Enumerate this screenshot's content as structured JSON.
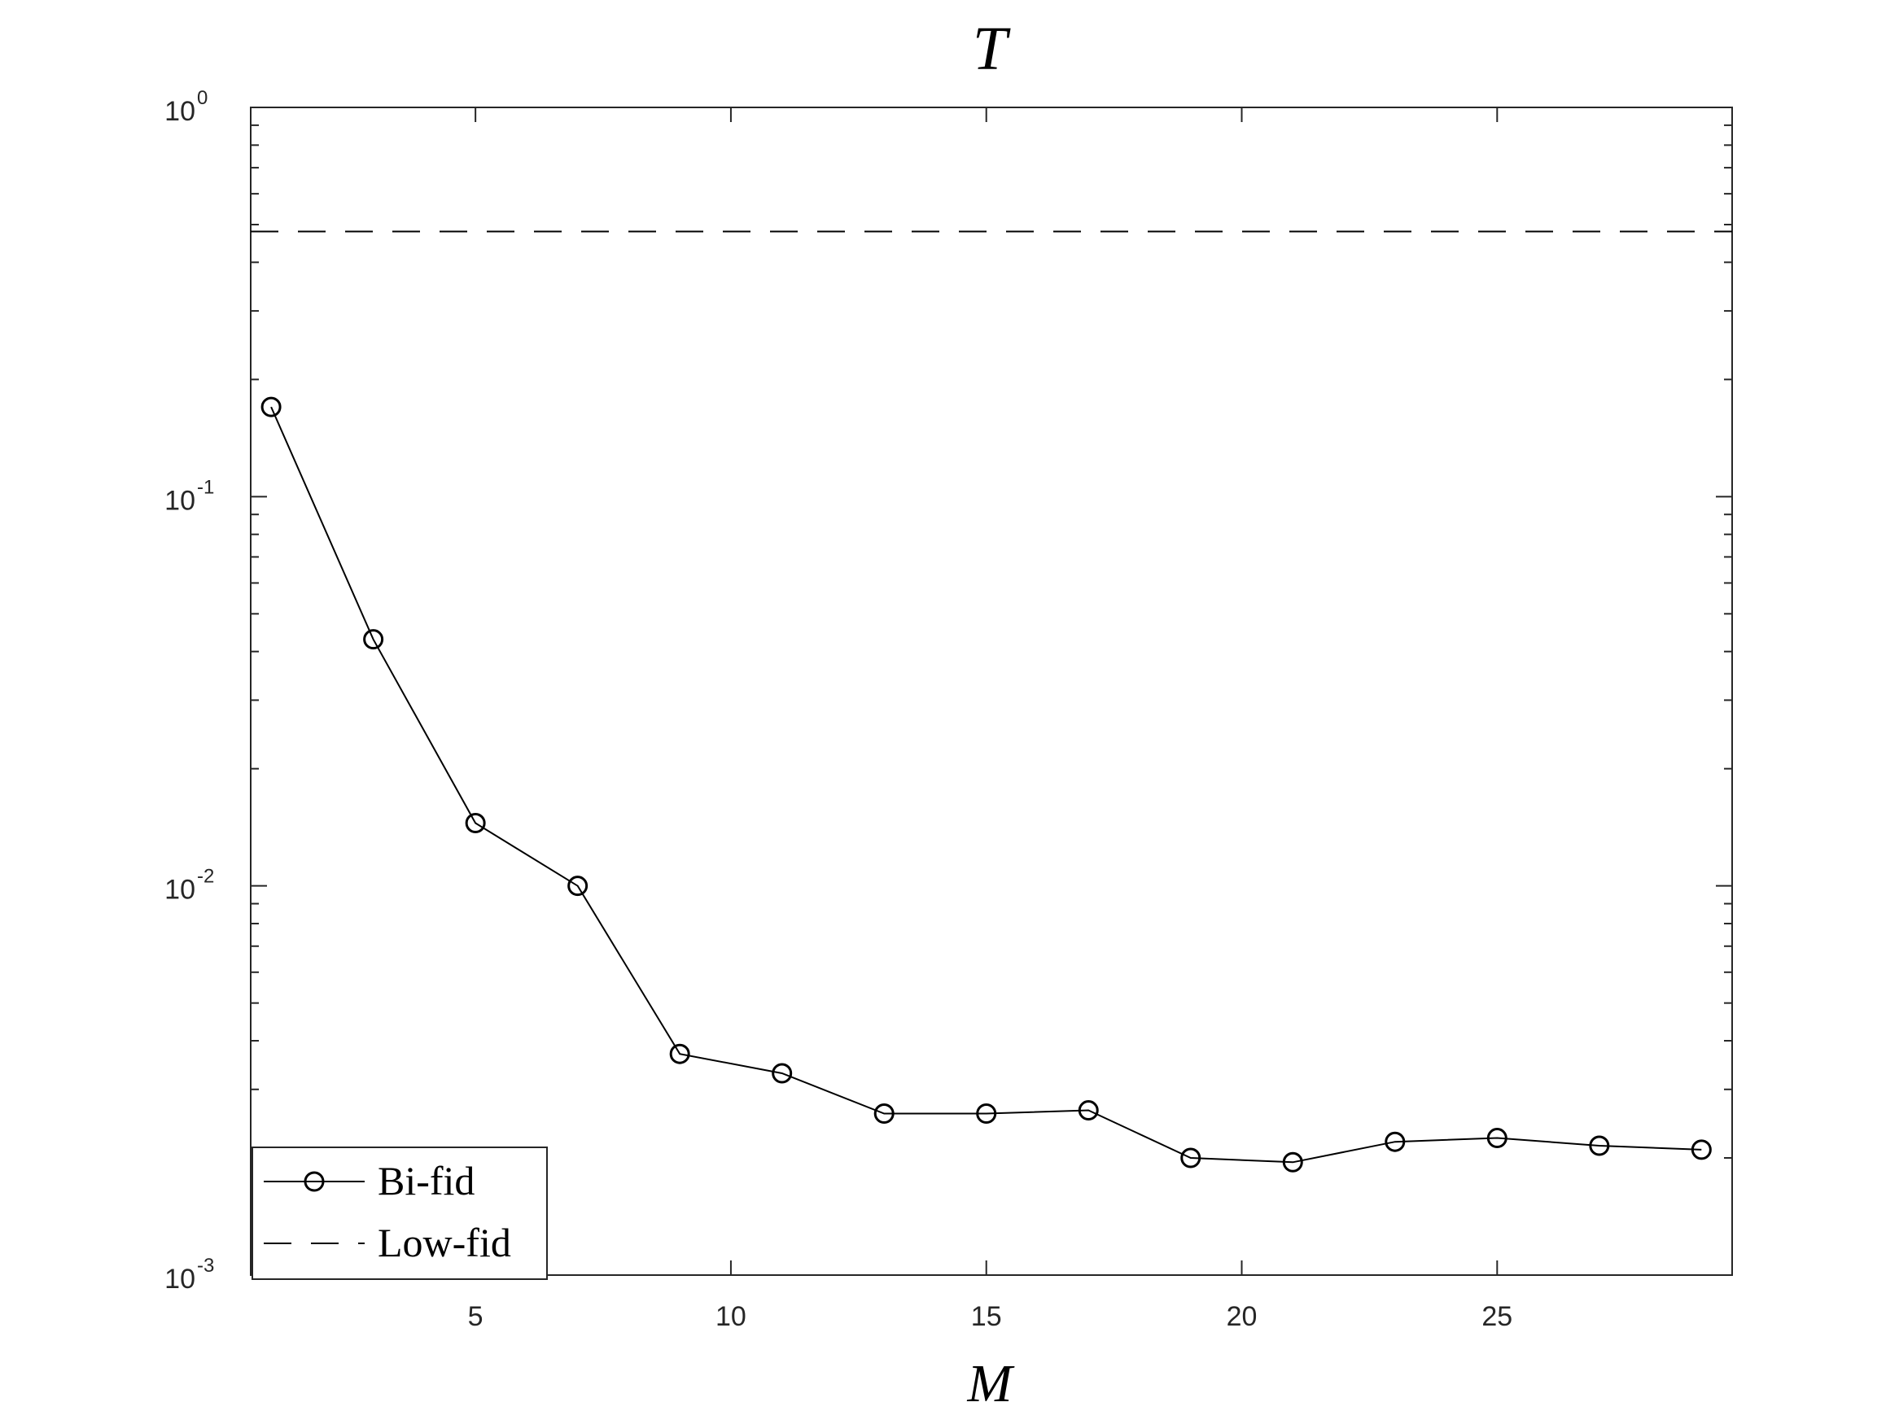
{
  "chart_data": {
    "type": "line",
    "title": "T",
    "xlabel": "M",
    "ylabel": "",
    "xlim": [
      0.6,
      29.6
    ],
    "ylim": [
      0.001,
      1
    ],
    "yscale": "log",
    "xticks": [
      5,
      10,
      15,
      20,
      25
    ],
    "xtick_labels": [
      "5",
      "10",
      "15",
      "20",
      "25"
    ],
    "yticks": [
      {
        "value": 0.001,
        "base": "10",
        "exp": "-3"
      },
      {
        "value": 0.01,
        "base": "10",
        "exp": "-2"
      },
      {
        "value": 0.1,
        "base": "10",
        "exp": "-1"
      },
      {
        "value": 1,
        "base": "10",
        "exp": "0"
      }
    ],
    "grid": false,
    "legend_position": "bottom-left",
    "series": [
      {
        "name": "Bi-fid",
        "style": "solid-circle-markers",
        "color": "#000000",
        "x": [
          1,
          3,
          5,
          7,
          9,
          11,
          13,
          15,
          17,
          19,
          21,
          23,
          25,
          27,
          29
        ],
        "y": [
          0.17,
          0.043,
          0.0145,
          0.01,
          0.0037,
          0.0033,
          0.0026,
          0.0026,
          0.00265,
          0.002,
          0.00195,
          0.0022,
          0.00225,
          0.00215,
          0.0021
        ]
      },
      {
        "name": "Low-fid",
        "style": "dashed",
        "color": "#000000",
        "x": [
          0.6,
          29.6
        ],
        "y": [
          0.48,
          0.48
        ]
      }
    ]
  }
}
